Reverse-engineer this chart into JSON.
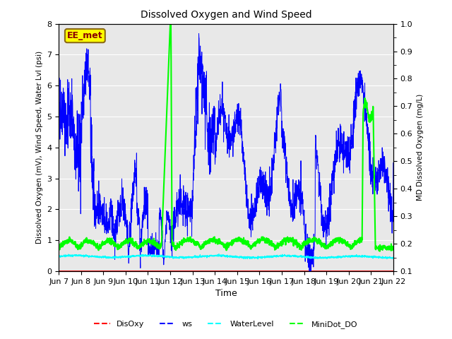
{
  "title": "Dissolved Oxygen and Wind Speed",
  "ylabel_left": "Dissolved Oxygen (mV), Wind Speed, Water Lvl (psi)",
  "ylabel_right": "MD Dissolved Oxygen (mg/L)",
  "xlabel": "Time",
  "ylim_left": [
    0.0,
    8.0
  ],
  "ylim_right": [
    0.1,
    1.0
  ],
  "annotation_text": "EE_met",
  "bg_color": "#E8E8E8",
  "xtick_labels": [
    "Jun 7",
    "Jun 8",
    "Jun 9",
    "Jun 10",
    "Jun 11",
    "Jun 12",
    "Jun 13",
    "Jun 14",
    "Jun 15",
    "Jun 16",
    "Jun 17",
    "Jun 18",
    "Jun 19",
    "Jun 20",
    "Jun 21",
    "Jun 22"
  ],
  "colors": {
    "DisOxy": "#FF0000",
    "ws": "#0000FF",
    "WaterLevel": "#00FFFF",
    "MiniDot_DO": "#00FF00"
  },
  "legend_labels": [
    "DisOxy",
    "ws",
    "WaterLevel",
    "MiniDot_DO"
  ],
  "figsize": [
    6.4,
    4.8
  ],
  "dpi": 100
}
